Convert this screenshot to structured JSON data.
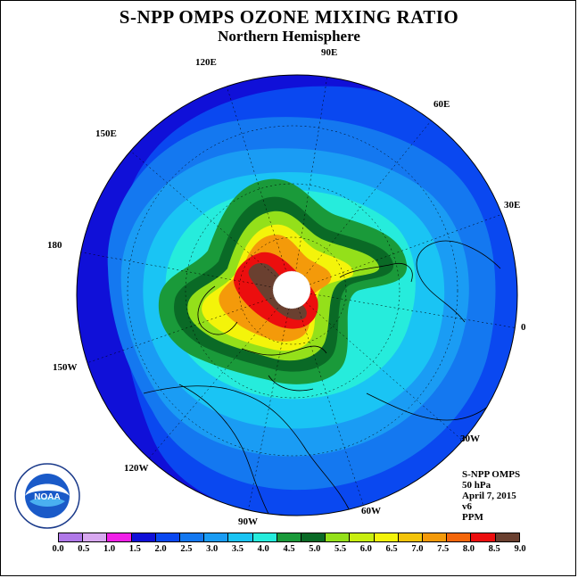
{
  "header": {
    "title": "S-NPP OMPS OZONE MIXING RATIO",
    "subtitle": "Northern Hemisphere"
  },
  "map": {
    "projection": "north polar stereographic",
    "longitude_labels": [
      "90E",
      "60E",
      "30E",
      "0",
      "30W",
      "60W",
      "90W",
      "120W",
      "150W",
      "180",
      "150E",
      "120E"
    ],
    "colors": {
      "background": "#ffffff",
      "deep_blue": "#1010d8",
      "blue": "#0a48f0",
      "mid_blue": "#1478f0",
      "light_blue": "#1a9cf4",
      "sky": "#1ac4f4",
      "aqua": "#26ecdc",
      "green": "#1a9a3a",
      "dark_green": "#0a6a26",
      "yellow_green": "#94e01a",
      "yellow_green2": "#c8ee10",
      "yellow": "#f4f40a",
      "gold": "#f4c40a",
      "orange": "#f49a0a",
      "orange_red": "#f4660a",
      "red": "#ec0e0e",
      "brown": "#6a4030",
      "pole": "#ffffff"
    }
  },
  "info": {
    "instrument": "S-NPP OMPS",
    "pressure": "50 hPa",
    "date": "April 7, 2015",
    "version": "v6",
    "units": "PPM"
  },
  "colorbar": {
    "ticks": [
      "0.0",
      "0.5",
      "1.0",
      "1.5",
      "2.0",
      "2.5",
      "3.0",
      "3.5",
      "4.0",
      "4.5",
      "5.0",
      "5.5",
      "6.0",
      "6.5",
      "7.0",
      "7.5",
      "8.0",
      "8.5",
      "9.0"
    ],
    "colors": [
      "#b078e8",
      "#d8a8f0",
      "#f020e8",
      "#1010d8",
      "#0a48f0",
      "#1478f0",
      "#1a9cf4",
      "#1ac4f4",
      "#26ecdc",
      "#1a9a3a",
      "#0a6a26",
      "#94e01a",
      "#c8ee10",
      "#f4f40a",
      "#f4c40a",
      "#f49a0a",
      "#f4660a",
      "#ec0e0e",
      "#6a4030"
    ]
  },
  "logo": {
    "text": "NOAA",
    "ring_text": "NATIONAL OCEANIC AND ATMOSPHERIC ADMINISTRATION · U.S. DEPARTMENT OF COMMERCE"
  }
}
